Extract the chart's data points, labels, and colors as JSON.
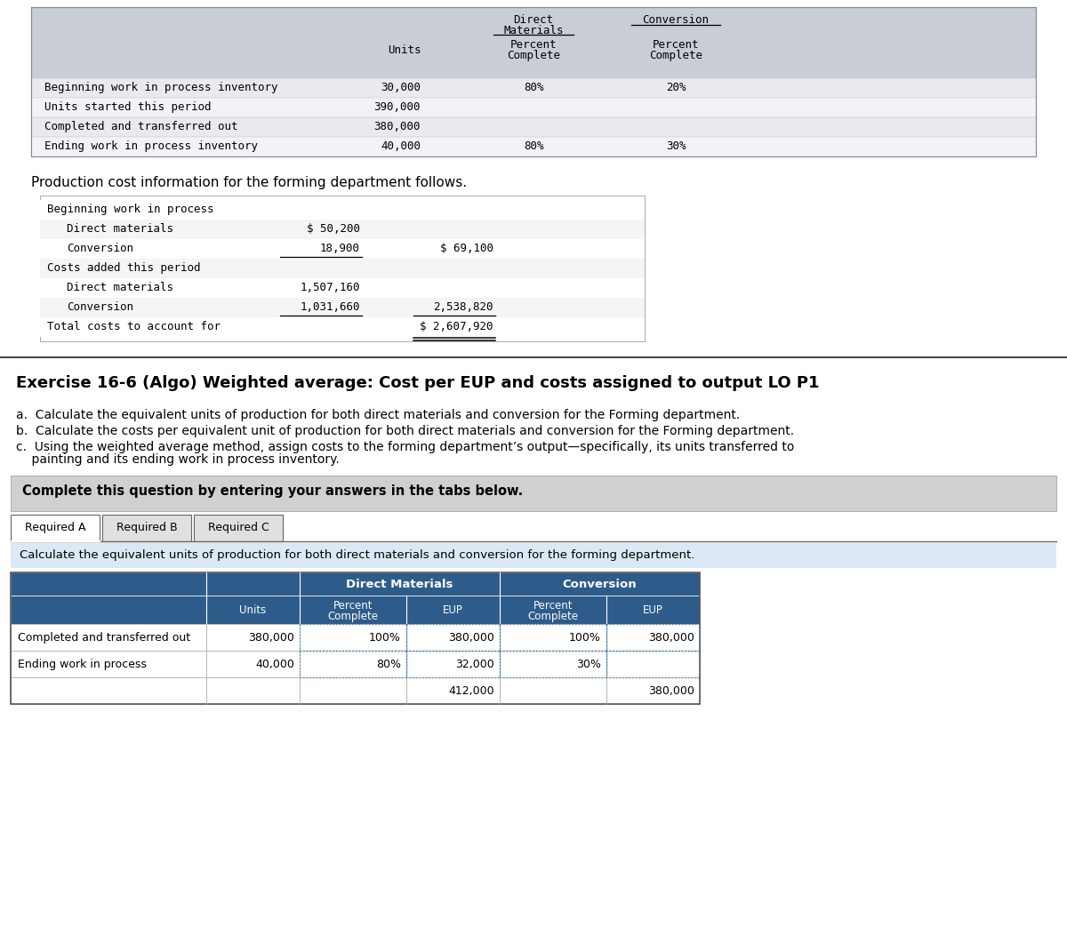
{
  "bg_color": "#ffffff",
  "section1_title": "Production cost information for the forming department follows.",
  "exercise_title": "Exercise 16-6 (Algo) Weighted average: Cost per EUP and costs assigned to output LO P1",
  "instruction_a": "a.  Calculate the equivalent units of production for both direct materials and conversion for the Forming department.",
  "instruction_b": "b.  Calculate the costs per equivalent unit of production for both direct materials and conversion for the Forming department.",
  "instruction_c1": "c.  Using the weighted average method, assign costs to the forming department’s output—specifically, its units transferred to",
  "instruction_c2": "    painting and its ending work in process inventory.",
  "complete_text": "Complete this question by entering your answers in the tabs below.",
  "tab_labels": [
    "Required A",
    "Required B",
    "Required C"
  ],
  "calc_text": "Calculate the equivalent units of production for both direct materials and conversion for the forming department.",
  "table1_rows": [
    {
      "label": "Beginning work in process inventory",
      "units": "30,000",
      "dm_pct": "80%",
      "conv_pct": "20%"
    },
    {
      "label": "Units started this period",
      "units": "390,000",
      "dm_pct": "",
      "conv_pct": ""
    },
    {
      "label": "Completed and transferred out",
      "units": "380,000",
      "dm_pct": "",
      "conv_pct": ""
    },
    {
      "label": "Ending work in process inventory",
      "units": "40,000",
      "dm_pct": "80%",
      "conv_pct": "30%"
    }
  ],
  "cost_rows": [
    {
      "indent": 0,
      "label": "Beginning work in process",
      "col1": "",
      "col2": "",
      "underline1": false,
      "underline2": false
    },
    {
      "indent": 1,
      "label": "Direct materials",
      "col1": "$ 50,200",
      "col2": "",
      "underline1": false,
      "underline2": false
    },
    {
      "indent": 1,
      "label": "Conversion",
      "col1": "18,900",
      "col2": "$ 69,100",
      "underline1": true,
      "underline2": false
    },
    {
      "indent": 0,
      "label": "Costs added this period",
      "col1": "",
      "col2": "",
      "underline1": false,
      "underline2": false
    },
    {
      "indent": 1,
      "label": "Direct materials",
      "col1": "1,507,160",
      "col2": "",
      "underline1": false,
      "underline2": false
    },
    {
      "indent": 1,
      "label": "Conversion",
      "col1": "1,031,660",
      "col2": "2,538,820",
      "underline1": true,
      "underline2": true
    },
    {
      "indent": 0,
      "label": "Total costs to account for",
      "col1": "",
      "col2": "$ 2,607,920",
      "underline1": false,
      "underline2": false,
      "double_under2": true
    }
  ],
  "eup_rows": [
    {
      "label": "Completed and transferred out",
      "units": "380,000",
      "dm_pct": "100%",
      "dm_eup": "380,000",
      "conv_pct": "100%",
      "conv_eup": "380,000"
    },
    {
      "label": "Ending work in process",
      "units": "40,000",
      "dm_pct": "80%",
      "dm_eup": "32,000",
      "conv_pct": "30%",
      "conv_eup": ""
    },
    {
      "label": "",
      "units": "",
      "dm_pct": "",
      "dm_eup": "412,000",
      "conv_pct": "",
      "conv_eup": "380,000"
    }
  ],
  "colors": {
    "table1_header_bg": "#c8cdd6",
    "table1_row_even": "#e8eaf0",
    "table1_row_odd": "#f2f3f7",
    "eup_header_bg": "#2e5c8a",
    "eup_header_text": "#ffffff",
    "eup_row_bg": "#ffffff",
    "eup_border": "#5588bb",
    "tab_selected": "#ffffff",
    "tab_unselected": "#e0e0e0",
    "gray_bar": "#d0d0d0",
    "light_blue": "#dce8f5",
    "outer_border": "#555555"
  }
}
